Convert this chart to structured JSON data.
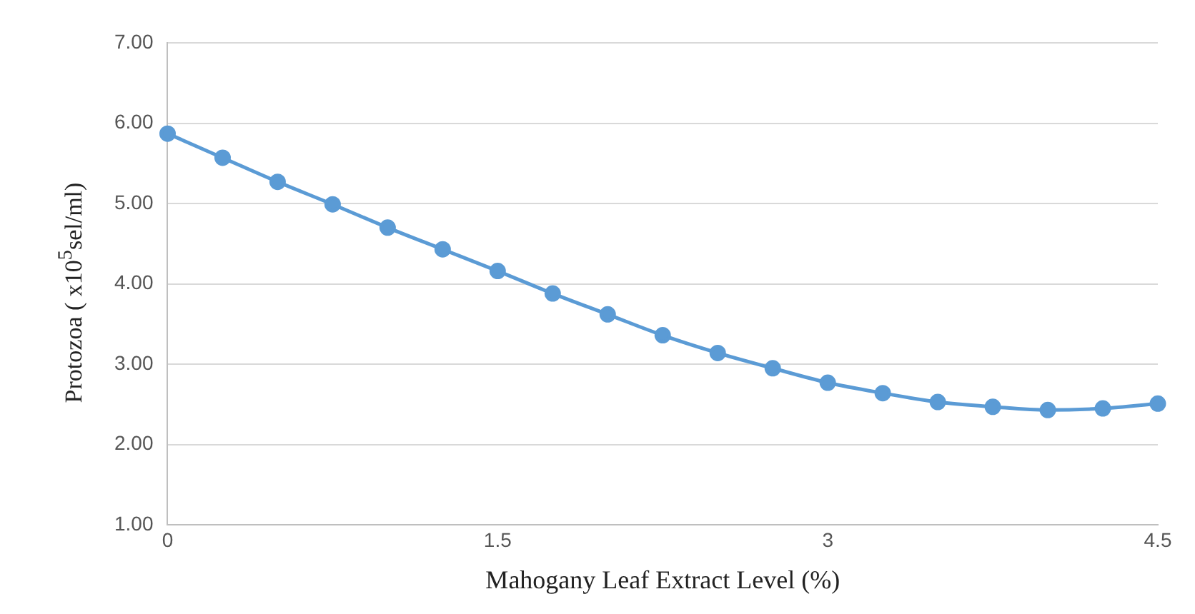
{
  "chart_data": {
    "type": "line",
    "xlabel": "Mahogany Leaf Extract Level (%)",
    "ylabel": "Protozoa ( x10$^{5}$sel/ml)",
    "x": [
      0,
      0.25,
      0.5,
      0.75,
      1,
      1.25,
      1.5,
      1.75,
      2,
      2.25,
      2.5,
      2.75,
      3,
      3.25,
      3.5,
      3.75,
      4,
      4.25,
      4.5
    ],
    "series": [
      {
        "color": "#5b9bd5",
        "values": [
          5.87,
          5.57,
          5.27,
          4.99,
          4.7,
          4.43,
          4.16,
          3.88,
          3.62,
          3.36,
          3.14,
          2.95,
          2.77,
          2.64,
          2.53,
          2.47,
          2.43,
          2.45,
          2.51
        ]
      }
    ],
    "xlim": [
      0,
      4.5
    ],
    "xticks": [
      0,
      1.5,
      3,
      4.5
    ],
    "ylim": [
      1,
      7
    ],
    "yticks": [
      {
        "value": 1,
        "label": "1.00"
      },
      {
        "value": 2,
        "label": "2.00"
      },
      {
        "value": 3,
        "label": "3.00"
      },
      {
        "value": 4,
        "label": "4.00"
      },
      {
        "value": 5,
        "label": "5.00"
      },
      {
        "value": 6,
        "label": "6.00"
      },
      {
        "value": 7,
        "label": "7.00"
      }
    ],
    "grid": "y",
    "marker": "circle",
    "line_style": "solid",
    "legend": false
  }
}
